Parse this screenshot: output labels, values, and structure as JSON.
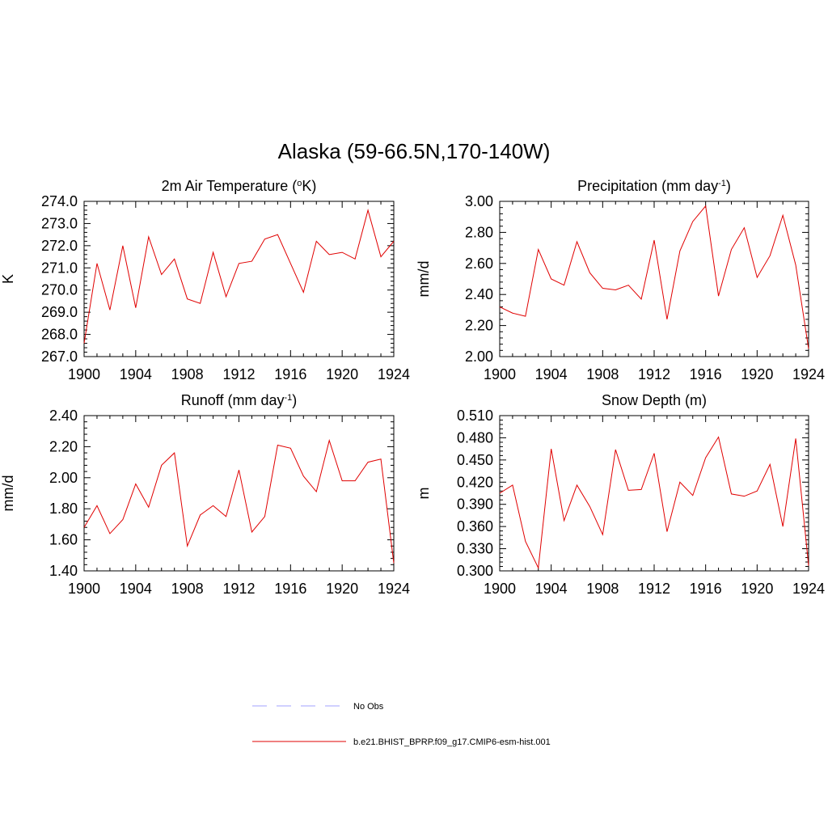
{
  "main_title": "Alaska (59-66.5N,170-140W)",
  "legend": [
    {
      "label": "No Obs",
      "color": "#a0a0ff",
      "dash": "dashed"
    },
    {
      "label": "b.e21.BHIST_BPRP.f09_g17.CMIP6-esm-hist.001",
      "color": "#e00000",
      "dash": "solid"
    }
  ],
  "chart_data": [
    {
      "type": "line",
      "title": "2m Air Temperature (",
      "title_sup": "o",
      "title_tail": "K)",
      "ylabel": "K",
      "xlim": [
        1900,
        1924
      ],
      "ylim": [
        267.0,
        274.0
      ],
      "xticks": [
        "1900",
        "1904",
        "1908",
        "1912",
        "1916",
        "1920",
        "1924"
      ],
      "yticks": [
        "267.0",
        "268.0",
        "269.0",
        "270.0",
        "271.0",
        "272.0",
        "273.0",
        "274.0"
      ],
      "x": [
        1900,
        1901,
        1902,
        1903,
        1904,
        1905,
        1906,
        1907,
        1908,
        1909,
        1910,
        1911,
        1912,
        1913,
        1914,
        1915,
        1916,
        1917,
        1918,
        1919,
        1920,
        1921,
        1922,
        1923,
        1924
      ],
      "series": [
        {
          "name": "b.e21.BHIST_BPRP.f09_g17.CMIP6-esm-hist.001",
          "color": "#e00000",
          "values": [
            267.6,
            271.2,
            269.1,
            272.0,
            269.2,
            272.4,
            270.7,
            271.4,
            269.6,
            269.4,
            271.7,
            269.7,
            271.2,
            271.3,
            272.3,
            272.5,
            271.2,
            269.9,
            272.2,
            271.6,
            271.7,
            271.4,
            273.6,
            271.5,
            272.2
          ]
        }
      ]
    },
    {
      "type": "line",
      "title": "Precipitation (mm day",
      "title_sup": "-1",
      "title_tail": ")",
      "ylabel": "mm/d",
      "xlim": [
        1900,
        1924
      ],
      "ylim": [
        2.0,
        3.0
      ],
      "xticks": [
        "1900",
        "1904",
        "1908",
        "1912",
        "1916",
        "1920",
        "1924"
      ],
      "yticks": [
        "2.00",
        "2.20",
        "2.40",
        "2.60",
        "2.80",
        "3.00"
      ],
      "x": [
        1900,
        1901,
        1902,
        1903,
        1904,
        1905,
        1906,
        1907,
        1908,
        1909,
        1910,
        1911,
        1912,
        1913,
        1914,
        1915,
        1916,
        1917,
        1918,
        1919,
        1920,
        1921,
        1922,
        1923,
        1924
      ],
      "series": [
        {
          "name": "b.e21.BHIST_BPRP.f09_g17.CMIP6-esm-hist.001",
          "color": "#e00000",
          "values": [
            2.32,
            2.28,
            2.26,
            2.69,
            2.5,
            2.46,
            2.74,
            2.54,
            2.44,
            2.43,
            2.46,
            2.37,
            2.75,
            2.24,
            2.68,
            2.87,
            2.97,
            2.39,
            2.69,
            2.83,
            2.51,
            2.65,
            2.91,
            2.59,
            2.05
          ]
        }
      ]
    },
    {
      "type": "line",
      "title": "Runoff (mm day",
      "title_sup": "-1",
      "title_tail": ")",
      "ylabel": "mm/d",
      "xlim": [
        1900,
        1924
      ],
      "ylim": [
        1.4,
        2.4
      ],
      "xticks": [
        "1900",
        "1904",
        "1908",
        "1912",
        "1916",
        "1920",
        "1924"
      ],
      "yticks": [
        "1.40",
        "1.60",
        "1.80",
        "2.00",
        "2.20",
        "2.40"
      ],
      "x": [
        1900,
        1901,
        1902,
        1903,
        1904,
        1905,
        1906,
        1907,
        1908,
        1909,
        1910,
        1911,
        1912,
        1913,
        1914,
        1915,
        1916,
        1917,
        1918,
        1919,
        1920,
        1921,
        1922,
        1923,
        1924
      ],
      "series": [
        {
          "name": "b.e21.BHIST_BPRP.f09_g17.CMIP6-esm-hist.001",
          "color": "#e00000",
          "values": [
            1.68,
            1.82,
            1.64,
            1.73,
            1.96,
            1.81,
            2.08,
            2.16,
            1.56,
            1.76,
            1.82,
            1.75,
            2.05,
            1.65,
            1.75,
            2.21,
            2.19,
            2.01,
            1.91,
            2.24,
            1.98,
            1.98,
            2.1,
            2.12,
            1.45
          ]
        }
      ]
    },
    {
      "type": "line",
      "title": "Snow Depth (m)",
      "title_sup": "",
      "title_tail": "",
      "ylabel": "m",
      "xlim": [
        1900,
        1924
      ],
      "ylim": [
        0.3,
        0.51
      ],
      "xticks": [
        "1900",
        "1904",
        "1908",
        "1912",
        "1916",
        "1920",
        "1924"
      ],
      "yticks": [
        "0.300",
        "0.330",
        "0.360",
        "0.390",
        "0.420",
        "0.450",
        "0.480",
        "0.510"
      ],
      "x": [
        1900,
        1901,
        1902,
        1903,
        1904,
        1905,
        1906,
        1907,
        1908,
        1909,
        1910,
        1911,
        1912,
        1913,
        1914,
        1915,
        1916,
        1917,
        1918,
        1919,
        1920,
        1921,
        1922,
        1923,
        1924
      ],
      "series": [
        {
          "name": "b.e21.BHIST_BPRP.f09_g17.CMIP6-esm-hist.001",
          "color": "#e00000",
          "values": [
            0.405,
            0.416,
            0.34,
            0.304,
            0.465,
            0.368,
            0.416,
            0.387,
            0.349,
            0.464,
            0.409,
            0.41,
            0.459,
            0.353,
            0.42,
            0.402,
            0.453,
            0.481,
            0.404,
            0.401,
            0.408,
            0.444,
            0.36,
            0.479,
            0.307
          ]
        }
      ]
    }
  ]
}
